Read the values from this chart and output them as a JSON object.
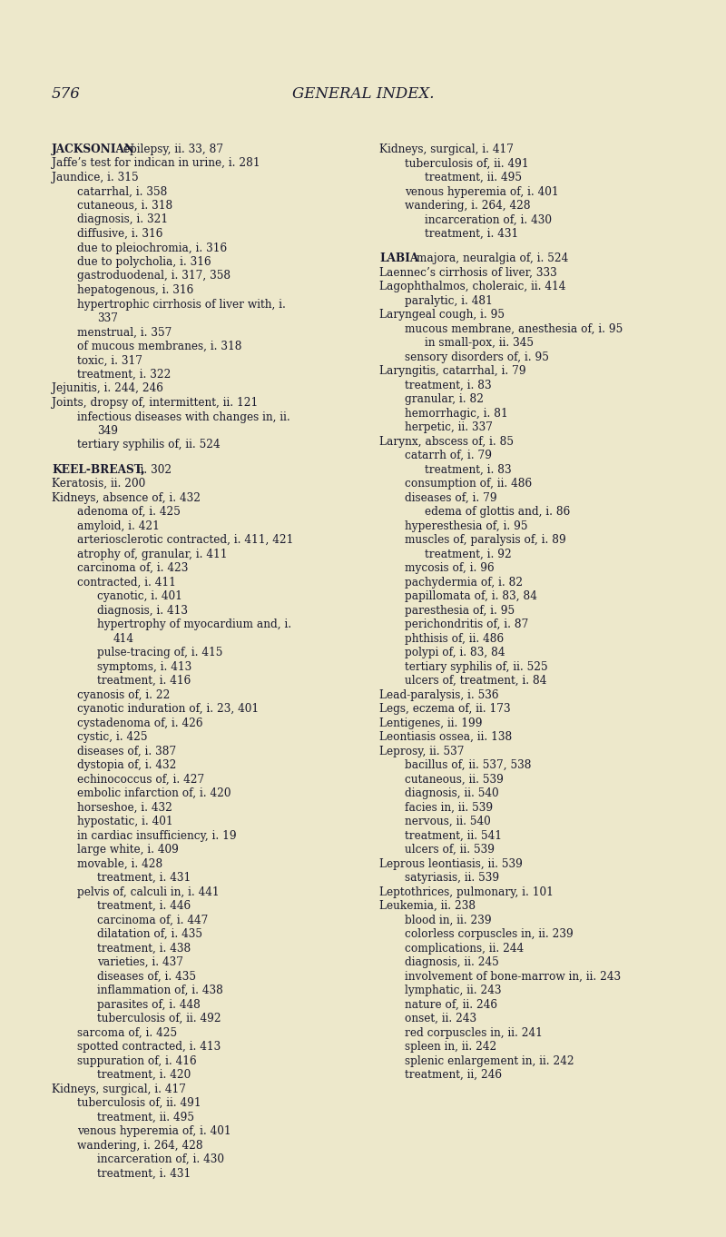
{
  "bg_color": "#ede8cb",
  "text_color": "#1a1a2e",
  "page_number": "576",
  "title": "GENERAL INDEX.",
  "left_entries": [
    [
      "top",
      "JACKSONIAN epilepsy, ii. 33, 87"
    ],
    [
      "top",
      "Jaffe’s test for indican in urine, i. 281"
    ],
    [
      "top",
      "Jaundice, i. 315"
    ],
    [
      "sub1",
      "catarrhal, i. 358"
    ],
    [
      "sub1",
      "cutaneous, i. 318"
    ],
    [
      "sub1",
      "diagnosis, i. 321"
    ],
    [
      "sub1",
      "diffusive, i. 316"
    ],
    [
      "sub1",
      "due to pleiochromia, i. 316"
    ],
    [
      "sub1",
      "due to polycholia, i. 316"
    ],
    [
      "sub1",
      "gastroduodenal, i. 317, 358"
    ],
    [
      "sub1",
      "hepatogenous, i. 316"
    ],
    [
      "sub1",
      "hypertrophic cirrhosis of liver with, i."
    ],
    [
      "sub2",
      "337"
    ],
    [
      "sub1",
      "menstrual, i. 357"
    ],
    [
      "sub1",
      "of mucous membranes, i. 318"
    ],
    [
      "sub1",
      "toxic, i. 317"
    ],
    [
      "sub1",
      "treatment, i. 322"
    ],
    [
      "top",
      "Jejunitis, i. 244, 246"
    ],
    [
      "top",
      "Joints, dropsy of, intermittent, ii. 121"
    ],
    [
      "sub1",
      "infectious diseases with changes in, ii."
    ],
    [
      "sub2",
      "349"
    ],
    [
      "sub1",
      "tertiary syphilis of, ii. 524"
    ],
    [
      "blank",
      ""
    ],
    [
      "top",
      "KEEL-BREAST, ii. 302"
    ],
    [
      "top",
      "Keratosis, ii. 200"
    ],
    [
      "top",
      "Kidneys, absence of, i. 432"
    ],
    [
      "sub1",
      "adenoma of, i. 425"
    ],
    [
      "sub1",
      "amyloid, i. 421"
    ],
    [
      "sub1",
      "arteriosclerotic contracted, i. 411, 421"
    ],
    [
      "sub1",
      "atrophy of, granular, i. 411"
    ],
    [
      "sub1",
      "carcinoma of, i. 423"
    ],
    [
      "sub1",
      "contracted, i. 411"
    ],
    [
      "sub2",
      "cyanotic, i. 401"
    ],
    [
      "sub2",
      "diagnosis, i. 413"
    ],
    [
      "sub2",
      "hypertrophy of myocardium and, i."
    ],
    [
      "sub3",
      "414"
    ],
    [
      "sub2",
      "pulse-tracing of, i. 415"
    ],
    [
      "sub2",
      "symptoms, i. 413"
    ],
    [
      "sub2",
      "treatment, i. 416"
    ],
    [
      "sub1",
      "cyanosis of, i. 22"
    ],
    [
      "sub1",
      "cyanotic induration of, i. 23, 401"
    ],
    [
      "sub1",
      "cystadenoma of, i. 426"
    ],
    [
      "sub1",
      "cystic, i. 425"
    ],
    [
      "sub1",
      "diseases of, i. 387"
    ],
    [
      "sub1",
      "dystopia of, i. 432"
    ],
    [
      "sub1",
      "echinococcus of, i. 427"
    ],
    [
      "sub1",
      "embolic infarction of, i. 420"
    ],
    [
      "sub1",
      "horseshoe, i. 432"
    ],
    [
      "sub1",
      "hypostatic, i. 401"
    ],
    [
      "sub1",
      "in cardiac insufficiency, i. 19"
    ],
    [
      "sub1",
      "large white, i. 409"
    ],
    [
      "sub1",
      "movable, i. 428"
    ],
    [
      "sub2",
      "treatment, i. 431"
    ],
    [
      "sub1",
      "pelvis of, calculi in, i. 441"
    ],
    [
      "sub2",
      "treatment, i. 446"
    ],
    [
      "sub2",
      "carcinoma of, i. 447"
    ],
    [
      "sub2",
      "dilatation of, i. 435"
    ],
    [
      "sub2",
      "treatment, i. 438"
    ],
    [
      "sub2",
      "varieties, i. 437"
    ],
    [
      "sub2",
      "diseases of, i. 435"
    ],
    [
      "sub2",
      "inflammation of, i. 438"
    ],
    [
      "sub2",
      "parasites of, i. 448"
    ],
    [
      "sub2",
      "tuberculosis of, ii. 492"
    ],
    [
      "sub1",
      "sarcoma of, i. 425"
    ],
    [
      "sub1",
      "spotted contracted, i. 413"
    ],
    [
      "sub1",
      "suppuration of, i. 416"
    ],
    [
      "sub2",
      "treatment, i. 420"
    ],
    [
      "top",
      "Kidneys, surgical, i. 417"
    ],
    [
      "sub1",
      "tuberculosis of, ii. 491"
    ],
    [
      "sub2",
      "treatment, ii. 495"
    ],
    [
      "sub1",
      "venous hyperemia of, i. 401"
    ],
    [
      "sub1",
      "wandering, i. 264, 428"
    ],
    [
      "sub2",
      "incarceration of, i. 430"
    ],
    [
      "sub2",
      "treatment, i. 431"
    ]
  ],
  "right_entries": [
    [
      "top",
      "Kidneys, surgical, i. 417"
    ],
    [
      "sub1",
      "tuberculosis of, ii. 491"
    ],
    [
      "sub2",
      "treatment, ii. 495"
    ],
    [
      "sub1",
      "venous hyperemia of, i. 401"
    ],
    [
      "sub1",
      "wandering, i. 264, 428"
    ],
    [
      "sub2",
      "incarceration of, i. 430"
    ],
    [
      "sub2",
      "treatment, i. 431"
    ],
    [
      "blank",
      ""
    ],
    [
      "top",
      "LABIA majora, neuralgia of, i. 524"
    ],
    [
      "top",
      "Laennec’s cirrhosis of liver, 333"
    ],
    [
      "top",
      "Lagophthalmos, choleraic, ii. 414"
    ],
    [
      "sub1",
      "paralytic, i. 481"
    ],
    [
      "top",
      "Laryngeal cough, i. 95"
    ],
    [
      "sub1",
      "mucous membrane, anesthesia of, i. 95"
    ],
    [
      "sub2",
      "in small-pox, ii. 345"
    ],
    [
      "sub1",
      "sensory disorders of, i. 95"
    ],
    [
      "top",
      "Laryngitis, catarrhal, i. 79"
    ],
    [
      "sub1",
      "treatment, i. 83"
    ],
    [
      "sub1",
      "granular, i. 82"
    ],
    [
      "sub1",
      "hemorrhagic, i. 81"
    ],
    [
      "sub1",
      "herpetic, ii. 337"
    ],
    [
      "top",
      "Larynx, abscess of, i. 85"
    ],
    [
      "sub1",
      "catarrh of, i. 79"
    ],
    [
      "sub2",
      "treatment, i. 83"
    ],
    [
      "sub1",
      "consumption of, ii. 486"
    ],
    [
      "sub1",
      "diseases of, i. 79"
    ],
    [
      "sub2",
      "edema of glottis and, i. 86"
    ],
    [
      "sub1",
      "hyperesthesia of, i. 95"
    ],
    [
      "sub1",
      "muscles of, paralysis of, i. 89"
    ],
    [
      "sub2",
      "treatment, i. 92"
    ],
    [
      "sub1",
      "mycosis of, i. 96"
    ],
    [
      "sub1",
      "pachydermia of, i. 82"
    ],
    [
      "sub1",
      "papillomata of, i. 83, 84"
    ],
    [
      "sub1",
      "paresthesia of, i. 95"
    ],
    [
      "sub1",
      "perichondritis of, i. 87"
    ],
    [
      "sub1",
      "phthisis of, ii. 486"
    ],
    [
      "sub1",
      "polypi of, i. 83, 84"
    ],
    [
      "sub1",
      "tertiary syphilis of, ii. 525"
    ],
    [
      "sub1",
      "ulcers of, treatment, i. 84"
    ],
    [
      "top",
      "Lead-paralysis, i. 536"
    ],
    [
      "top",
      "Legs, eczema of, ii. 173"
    ],
    [
      "top",
      "Lentigenes, ii. 199"
    ],
    [
      "top",
      "Leontiasis ossea, ii. 138"
    ],
    [
      "top",
      "Leprosy, ii. 537"
    ],
    [
      "sub1",
      "bacillus of, ii. 537, 538"
    ],
    [
      "sub1",
      "cutaneous, ii. 539"
    ],
    [
      "sub1",
      "diagnosis, ii. 540"
    ],
    [
      "sub1",
      "facies in, ii. 539"
    ],
    [
      "sub1",
      "nervous, ii. 540"
    ],
    [
      "sub1",
      "treatment, ii. 541"
    ],
    [
      "sub1",
      "ulcers of, ii. 539"
    ],
    [
      "top",
      "Leprous leontiasis, ii. 539"
    ],
    [
      "sub1",
      "satyriasis, ii. 539"
    ],
    [
      "top",
      "Leptothrices, pulmonary, i. 101"
    ],
    [
      "top",
      "Leukemia, ii. 238"
    ],
    [
      "sub1",
      "blood in, ii. 239"
    ],
    [
      "sub1",
      "colorless corpuscles in, ii. 239"
    ],
    [
      "sub1",
      "complications, ii. 244"
    ],
    [
      "sub1",
      "diagnosis, ii. 245"
    ],
    [
      "sub1",
      "involvement of bone-marrow in, ii. 243"
    ],
    [
      "sub1",
      "lymphatic, ii. 243"
    ],
    [
      "sub1",
      "nature of, ii. 246"
    ],
    [
      "sub1",
      "onset, ii. 243"
    ],
    [
      "sub1",
      "red corpuscles in, ii. 241"
    ],
    [
      "sub1",
      "spleen in, ii. 242"
    ],
    [
      "sub1",
      "splenic enlargement in, ii. 242"
    ],
    [
      "sub1",
      "treatment, ii, 246"
    ]
  ],
  "smallcaps_entries": [
    "JACKSONIAN",
    "KEEL-BREAST",
    "LABIA",
    "LARYNGEAL",
    "LARYNGITIS",
    "LARYNX",
    "LEAD-PARALYSIS",
    "LEGS",
    "LENTIGENES",
    "LEONTIASIS",
    "LEPROSY",
    "LEPROUS",
    "LEPTOTHRICES",
    "LEUKEMIA"
  ]
}
